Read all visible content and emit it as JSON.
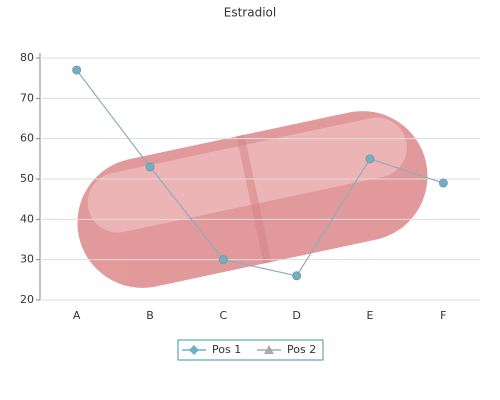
{
  "chart_data": {
    "type": "line",
    "title": "Estradiol",
    "categories": [
      "A",
      "B",
      "C",
      "D",
      "E",
      "F"
    ],
    "series": [
      {
        "name": "Pos 1",
        "color": "#6fb0c8",
        "values": [
          77,
          53,
          30,
          26,
          55,
          49
        ]
      },
      {
        "name": "Pos 2",
        "color": "#a9a9a9",
        "values": [
          null,
          null,
          null,
          null,
          null,
          null
        ]
      }
    ],
    "ylim": [
      20,
      80
    ],
    "yticks": [
      20,
      30,
      40,
      50,
      60,
      70,
      80
    ],
    "grid": true
  }
}
